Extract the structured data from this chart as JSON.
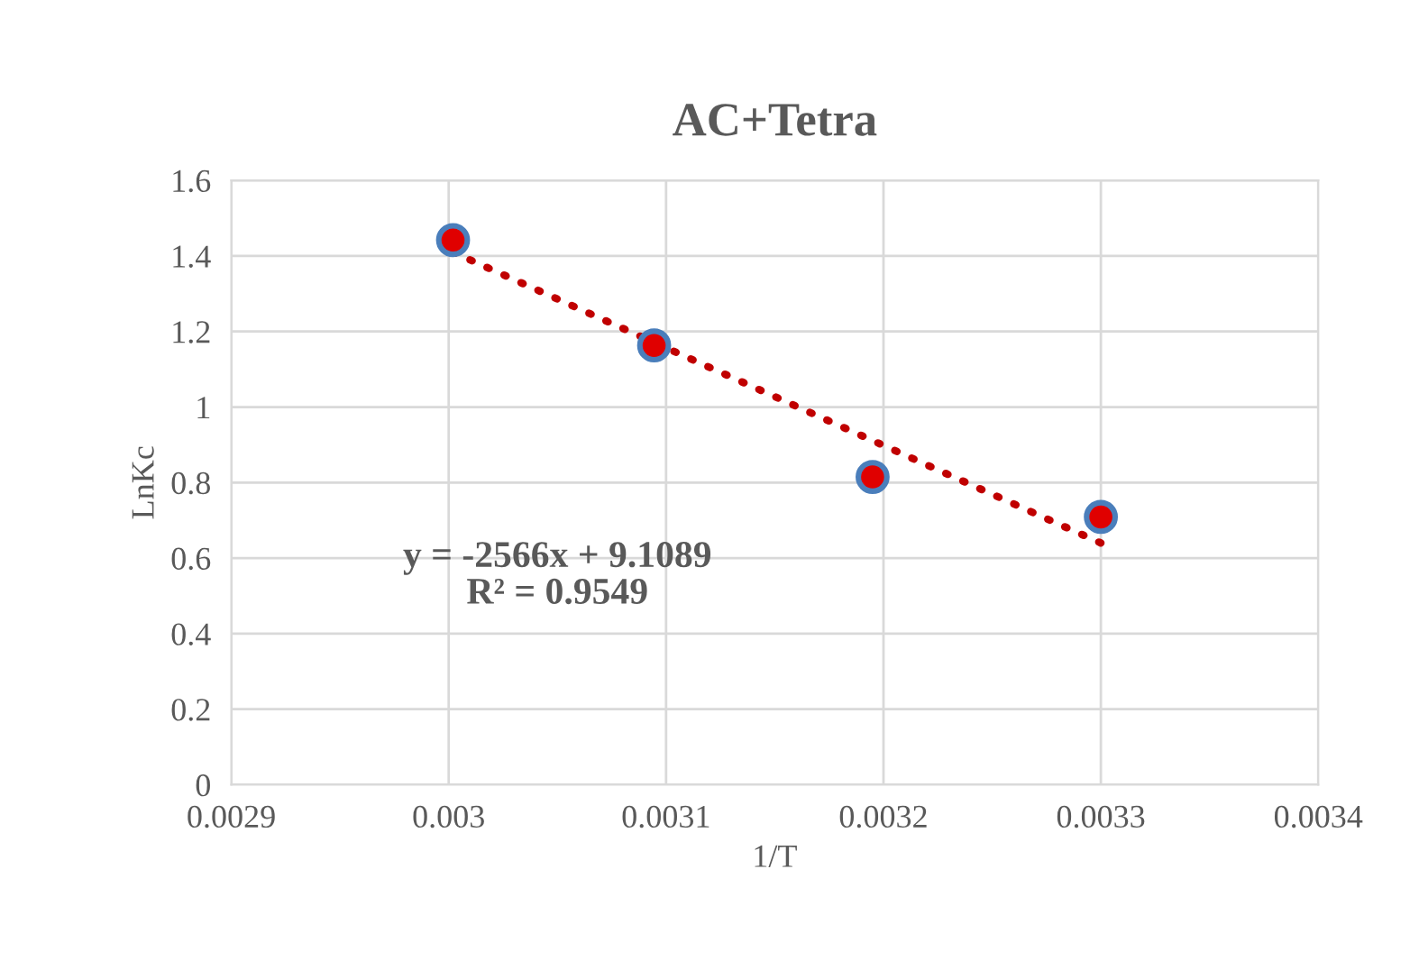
{
  "chart_data": {
    "type": "scatter",
    "title": "AC+Tetra",
    "xlabel": "1/T",
    "ylabel": "LnKc",
    "series": [
      {
        "color": "#e00000",
        "x": [
          0.003002,
          0.0030945,
          0.003195,
          0.0033
        ],
        "values": [
          1.442,
          1.163,
          0.815,
          0.709
        ]
      },
      {
        "type": "line",
        "color": "#c00000",
        "line_style": "dotted",
        "marker": "none",
        "x": [
          0.003002,
          0.0033
        ],
        "values": [
          1.41,
          0.64
        ]
      }
    ],
    "marker": "circle",
    "annotations": [
      "y = -2566x + 9.1089\nR² = 0.9549"
    ],
    "xlim": [
      0.0029,
      0.0034
    ],
    "xticks": [
      0.0029,
      0.003,
      0.0031,
      0.0032,
      0.0033,
      0.0034
    ],
    "ylim": [
      0,
      1.6
    ],
    "yticks": [
      0,
      0.2,
      0.4,
      0.6,
      0.8,
      1,
      1.2,
      1.4,
      1.6
    ],
    "grid": true
  }
}
